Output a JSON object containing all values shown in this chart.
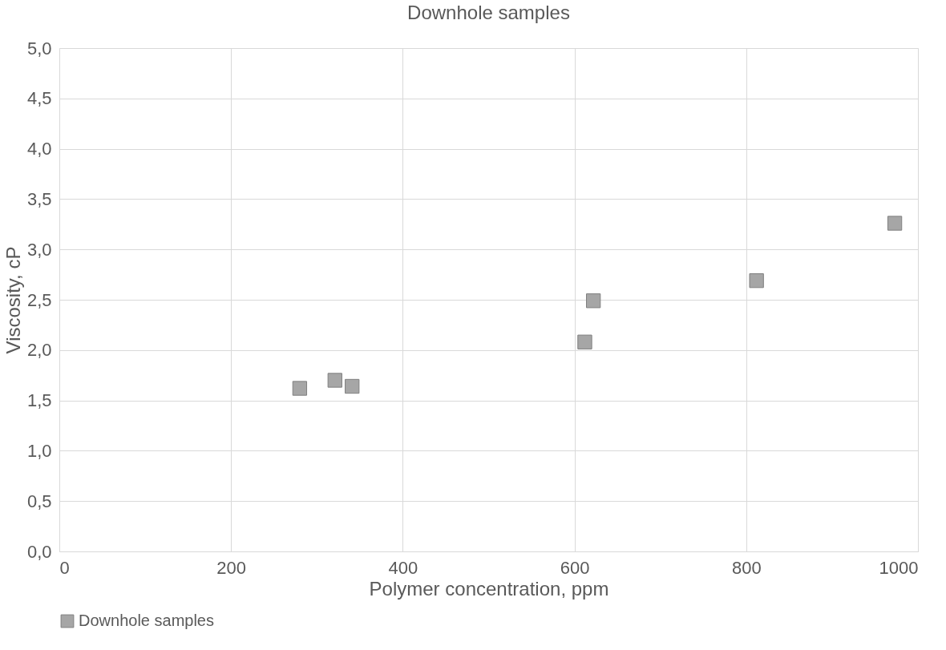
{
  "chart_data": {
    "type": "scatter",
    "title": "Downhole samples",
    "xlabel": "Polymer concentration, ppm",
    "ylabel": "Viscosity, cP",
    "x": [
      280,
      321,
      341,
      612,
      622,
      812,
      973
    ],
    "series": [
      {
        "name": "Downhole samples",
        "color": "#a6a6a6",
        "values": [
          1.62,
          1.7,
          1.64,
          2.08,
          2.49,
          2.69,
          3.26
        ]
      }
    ],
    "xlim": [
      0,
      1000
    ],
    "xticks": [
      0,
      200,
      400,
      600,
      800,
      1000
    ],
    "ylim": [
      0,
      5
    ],
    "yticks": [
      {
        "value": 0,
        "label": "0,0"
      },
      {
        "value": 0.5,
        "label": "0,5"
      },
      {
        "value": 1,
        "label": "1,0"
      },
      {
        "value": 1.5,
        "label": "1,5"
      },
      {
        "value": 2,
        "label": "2,0"
      },
      {
        "value": 2.5,
        "label": "2,5"
      },
      {
        "value": 3,
        "label": "3,0"
      },
      {
        "value": 3.5,
        "label": "3,5"
      },
      {
        "value": 4,
        "label": "4,0"
      },
      {
        "value": 4.5,
        "label": "4,5"
      },
      {
        "value": 5,
        "label": "5,0"
      }
    ],
    "grid": true,
    "legend": "bottom",
    "marker": "square"
  }
}
